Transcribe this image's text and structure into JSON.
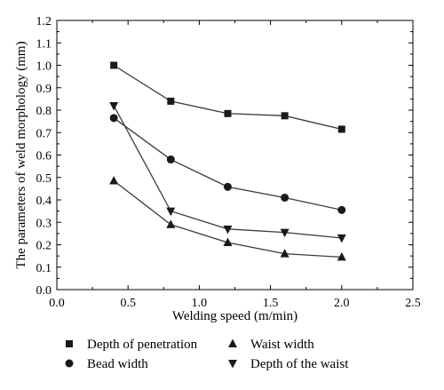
{
  "chart_data": {
    "type": "line",
    "title": "",
    "xlabel": "Welding speed (m/min)",
    "ylabel": "The parameters of weld morphology (mm)",
    "xlim": [
      0.0,
      2.5
    ],
    "ylim": [
      0.0,
      1.2
    ],
    "xticks": [
      "0.0",
      "0.5",
      "1.0",
      "1.5",
      "2.0",
      "2.5"
    ],
    "yticks": [
      "0.0",
      "0.1",
      "0.2",
      "0.3",
      "0.4",
      "0.5",
      "0.6",
      "0.7",
      "0.8",
      "0.9",
      "1.0",
      "1.1",
      "1.2"
    ],
    "grid": false,
    "legend_position": "bottom",
    "x": [
      0.4,
      0.8,
      1.2,
      1.6,
      2.0
    ],
    "series": [
      {
        "name": "Depth of penetration",
        "marker": "square",
        "values": [
          1.0,
          0.84,
          0.785,
          0.775,
          0.715
        ]
      },
      {
        "name": "Bead width",
        "marker": "circle",
        "values": [
          0.765,
          0.58,
          0.458,
          0.41,
          0.355
        ]
      },
      {
        "name": "Waist width",
        "marker": "triangle-up",
        "values": [
          0.485,
          0.29,
          0.21,
          0.16,
          0.145
        ]
      },
      {
        "name": "Depth of the waist",
        "marker": "triangle-down",
        "values": [
          0.82,
          0.35,
          0.27,
          0.255,
          0.23
        ]
      }
    ],
    "colors": {
      "line": "#3a3a3a",
      "marker": "#1a1a1a"
    }
  }
}
